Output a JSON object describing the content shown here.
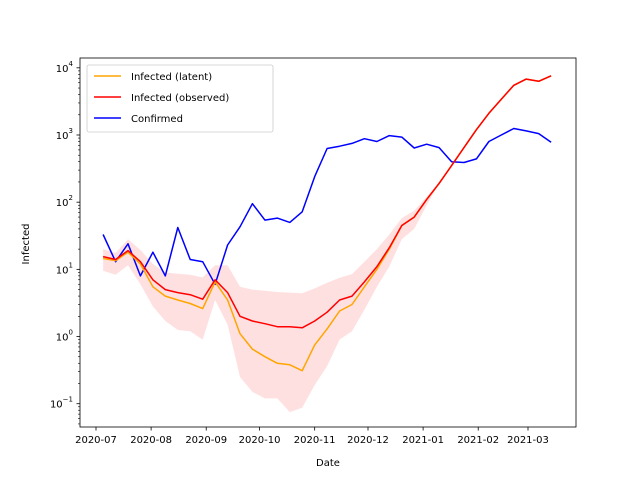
{
  "chart_data": {
    "type": "line",
    "xlabel": "Date",
    "ylabel": "Infected",
    "yscale": "log",
    "ylim": [
      0.045,
      14000
    ],
    "xlim": [
      "2020-06-22",
      "2021-03-28"
    ],
    "x_ticks": [
      "2020-07",
      "2020-08",
      "2020-09",
      "2020-10",
      "2020-11",
      "2020-12",
      "2021-01",
      "2021-02",
      "2021-03"
    ],
    "x_tick_dates": [
      "2020-07-01",
      "2020-08-01",
      "2020-09-01",
      "2020-10-01",
      "2020-11-01",
      "2020-12-01",
      "2021-01-01",
      "2021-02-01",
      "2021-03-01"
    ],
    "y_ticks": [
      {
        "value": 0.1,
        "base": "10",
        "exp": "−1"
      },
      {
        "value": 1,
        "base": "10",
        "exp": "0"
      },
      {
        "value": 10,
        "base": "10",
        "exp": "1"
      },
      {
        "value": 100,
        "base": "10",
        "exp": "2"
      },
      {
        "value": 1000,
        "base": "10",
        "exp": "3"
      },
      {
        "value": 10000,
        "base": "10",
        "exp": "4"
      }
    ],
    "legend_position": "top-left",
    "grid": false,
    "x": [
      "2020-07-05",
      "2020-07-12",
      "2020-07-19",
      "2020-07-26",
      "2020-08-02",
      "2020-08-09",
      "2020-08-16",
      "2020-08-23",
      "2020-08-30",
      "2020-09-06",
      "2020-09-13",
      "2020-09-20",
      "2020-09-27",
      "2020-10-04",
      "2020-10-11",
      "2020-10-18",
      "2020-10-25",
      "2020-11-01",
      "2020-11-08",
      "2020-11-15",
      "2020-11-22",
      "2020-11-29",
      "2020-12-06",
      "2020-12-13",
      "2020-12-20",
      "2020-12-27",
      "2021-01-03",
      "2021-01-10",
      "2021-01-17",
      "2021-01-24",
      "2021-01-31",
      "2021-02-07",
      "2021-02-14",
      "2021-02-21",
      "2021-02-28",
      "2021-03-07",
      "2021-03-14"
    ],
    "series": [
      {
        "name": "Infected (latent)",
        "color": "#ffa500",
        "values": [
          14.5,
          13.5,
          18,
          12,
          5.5,
          4,
          3.5,
          3.1,
          2.6,
          6.5,
          3.5,
          1.1,
          0.65,
          0.5,
          0.4,
          0.38,
          0.31,
          0.75,
          1.3,
          2.4,
          3,
          5.5,
          10,
          20,
          45,
          60,
          110,
          190,
          350,
          650,
          1200,
          2100,
          3400,
          5500,
          6800,
          6300,
          7600
        ]
      },
      {
        "name": "Infected (observed)",
        "color": "#ff0000",
        "values": [
          15.5,
          14,
          19,
          13,
          7,
          5,
          4.5,
          4.2,
          3.6,
          7,
          4.5,
          2,
          1.7,
          1.55,
          1.4,
          1.4,
          1.35,
          1.7,
          2.3,
          3.5,
          4,
          6.5,
          11,
          21,
          45,
          60,
          110,
          190,
          350,
          650,
          1200,
          2100,
          3400,
          5500,
          6800,
          6300,
          7600
        ]
      },
      {
        "name": "Confirmed",
        "color": "#0000ff",
        "values": [
          33,
          13,
          24,
          8,
          18,
          8,
          42,
          14,
          13,
          6,
          23,
          43,
          95,
          54,
          58,
          50,
          72,
          240,
          630,
          680,
          750,
          880,
          800,
          980,
          930,
          640,
          730,
          650,
          400,
          390,
          440,
          800,
          1000,
          1250,
          1150,
          1050,
          780
        ]
      }
    ],
    "band": {
      "color": "#ff0000",
      "lower": [
        9.5,
        8.3,
        11.5,
        6,
        2.8,
        1.7,
        1.25,
        1.2,
        0.9,
        3.5,
        1.5,
        0.25,
        0.15,
        0.12,
        0.12,
        0.075,
        0.087,
        0.19,
        0.36,
        0.9,
        1.2,
        2.5,
        5.5,
        11,
        28,
        40,
        90,
        190,
        350,
        650,
        1200,
        2100,
        3400,
        5500,
        6800,
        6300,
        7600
      ],
      "upper": [
        20,
        17.5,
        28,
        19.5,
        12,
        9,
        8.6,
        8.3,
        7.6,
        11.5,
        11.5,
        5.5,
        5,
        4.8,
        4.6,
        4.5,
        4.4,
        5.2,
        6.3,
        7.5,
        8.5,
        13,
        20,
        33,
        58,
        75,
        120,
        200,
        360,
        650,
        1200,
        2100,
        3400,
        5500,
        6800,
        6300,
        7600
      ]
    }
  }
}
